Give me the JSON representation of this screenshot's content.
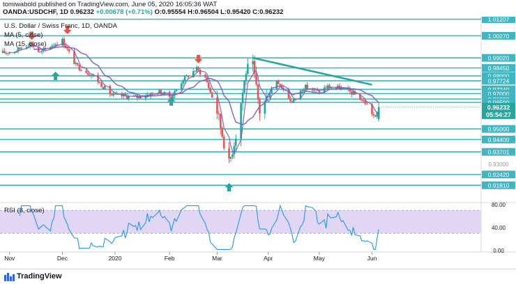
{
  "header": {
    "line1": "tomiwabold published on TradingView.com, June 05, 2020 16:05:36 WAT",
    "symbol": "OANDA:USDCHF, 1D",
    "price": "0.96232",
    "change": "+0.00678 (+0.71%)",
    "open": "O:0.95554",
    "high": "H:0.96504",
    "low": "L:0.95420",
    "close": "C:0.96232"
  },
  "chart_data": [
    {
      "type": "candlestick",
      "title": "U.S. Dollar / Swiss Franc, 1D, OANDA",
      "legend": [
        "MA (5, close)",
        "MA (15, close)"
      ],
      "x_labels": [
        "Nov",
        "Dec",
        "2020",
        "Feb",
        "Mar",
        "Apr",
        "May",
        "Jun"
      ],
      "y_ticks": [
        1.009,
        1.0,
        0.99,
        0.98,
        0.97,
        0.96,
        0.95,
        0.94,
        0.93,
        0.92,
        0.91
      ],
      "ylim": [
        0.9095,
        1.0135
      ],
      "support_resistance": [
        1.01207,
        1.0027,
        0.9902,
        0.9845,
        0.98,
        0.97724,
        0.9724,
        0.97,
        0.9669,
        0.965,
        0.95,
        0.944,
        0.93701,
        0.9242,
        0.9181
      ],
      "level_labels": [
        "1.01207",
        "1.00270",
        "0.99020",
        "0.98450",
        "0.98000",
        "0.97724",
        "0.97240",
        "0.97000",
        "0.96690",
        "0.96500",
        "0.95000",
        "0.94400",
        "0.93701",
        "0.92420",
        "0.91810"
      ],
      "current_price": 0.96232,
      "current_price_label": "0.96232",
      "countdown": "05:54:27",
      "trendline": {
        "from": {
          "date": "2020-03-23",
          "price": 0.9902
        },
        "to": {
          "date": "2020-06-01",
          "price": 0.975
        }
      },
      "arrows": [
        {
          "date": "2019-11-14",
          "direction": "down",
          "price": 1.0027
        },
        {
          "date": "2019-11-28",
          "direction": "up",
          "price": 0.98
        },
        {
          "date": "2019-12-05",
          "direction": "down",
          "price": 1.006
        },
        {
          "date": "2020-02-04",
          "direction": "up",
          "price": 0.9655
        },
        {
          "date": "2020-02-20",
          "direction": "down",
          "price": 0.9895
        },
        {
          "date": "2020-03-09",
          "direction": "up",
          "price": 0.917
        }
      ]
    },
    {
      "type": "line",
      "title": "RSI (8, close)",
      "y_ticks": [
        80.0,
        40.0,
        0.0
      ],
      "ylim": [
        0,
        80
      ],
      "band": [
        30,
        70
      ]
    }
  ],
  "colors": {
    "up": "#26a69a",
    "down": "#ef5350",
    "ma5": "#7e57c2",
    "ma15": "#7e57c2",
    "level": "#3fb6c4",
    "trendline": "#26a69a",
    "rsi": "#2196f3",
    "rsi_band": "#e1d7f5",
    "arrow_up": "#26a69a",
    "arrow_down": "#e8533f"
  },
  "footer": {
    "brand": "TradingView"
  }
}
